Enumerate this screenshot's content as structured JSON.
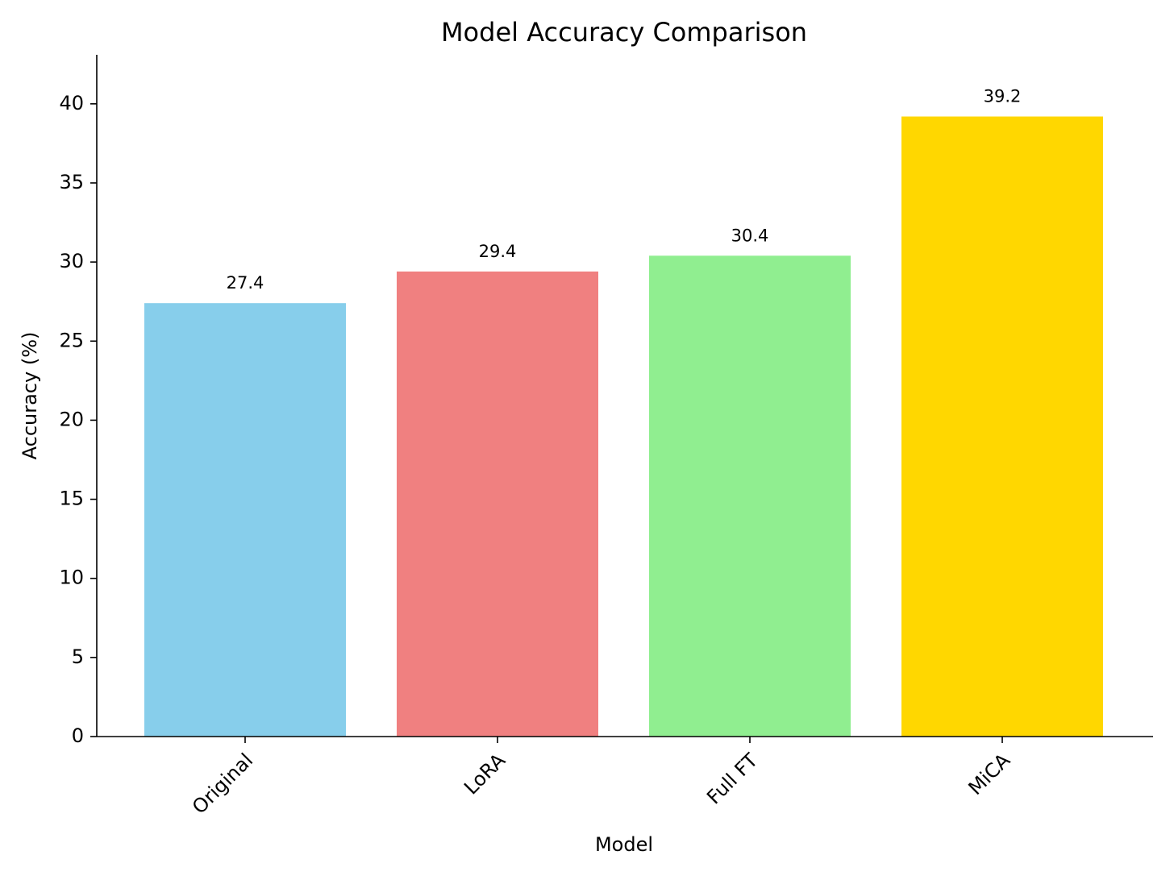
{
  "chart_data": {
    "type": "bar",
    "title": "Model Accuracy Comparison",
    "x_label": "Model",
    "y_label": "Accuracy (%)",
    "categories": [
      "Original",
      "LoRA",
      "Full FT",
      "MiCA"
    ],
    "values": [
      27.4,
      29.4,
      30.4,
      39.2
    ],
    "colors": [
      "#87ceeb",
      "#f08080",
      "#90ee90",
      "#ffd700"
    ],
    "ylim": [
      0,
      43.1
    ],
    "yticks": [
      0,
      5,
      10,
      15,
      20,
      25,
      30,
      35,
      40
    ],
    "grid": false
  }
}
